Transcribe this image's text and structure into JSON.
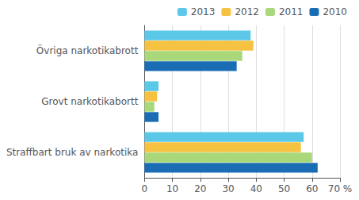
{
  "chart_data": {
    "type": "bar",
    "orientation": "horizontal",
    "categories": [
      "Övriga narkotikabrott",
      "Grovt narkotikabortt",
      "Straffbart bruk av narkotika"
    ],
    "series": [
      {
        "name": "2013",
        "color": "#5bc8e8",
        "values": [
          38,
          5,
          57
        ]
      },
      {
        "name": "2012",
        "color": "#f5c242",
        "values": [
          39,
          4.5,
          56
        ]
      },
      {
        "name": "2011",
        "color": "#a8d87a",
        "values": [
          35,
          3.5,
          60
        ]
      },
      {
        "name": "2010",
        "color": "#1a6db5",
        "values": [
          33,
          5,
          62
        ]
      }
    ],
    "xlim": [
      0,
      70
    ],
    "xticks": [
      0,
      10,
      20,
      30,
      40,
      50,
      60,
      {
        "value": 70,
        "label": "70 %"
      }
    ],
    "grid": true,
    "legend": "upper right"
  }
}
